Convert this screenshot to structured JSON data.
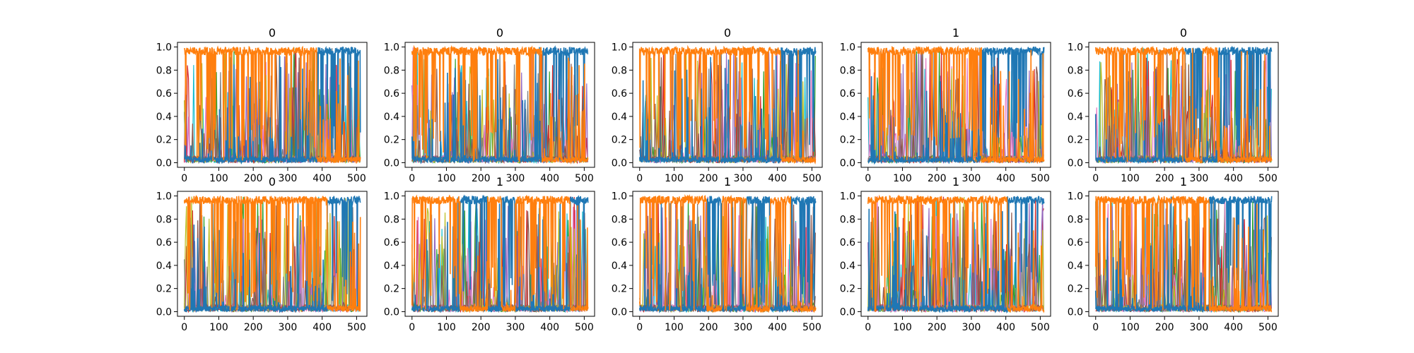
{
  "chart_data": [
    {
      "type": "line",
      "title": "0",
      "x_ticks": [
        "0",
        "100",
        "200",
        "300",
        "400",
        "500"
      ],
      "y_ticks": [
        "0.0",
        "0.2",
        "0.4",
        "0.6",
        "0.8",
        "1.0"
      ],
      "xlim": [
        -20,
        530
      ],
      "ylim": [
        -0.04,
        1.04
      ],
      "xlabel": "",
      "ylabel": "",
      "grid": false,
      "legend": "none",
      "regimes": [
        {
          "series": "orange",
          "from": 0,
          "to": 385
        },
        {
          "series": "blue",
          "from": 385,
          "to": 511
        }
      ]
    },
    {
      "type": "line",
      "title": "0",
      "x_ticks": [
        "0",
        "100",
        "200",
        "300",
        "400",
        "500"
      ],
      "y_ticks": [
        "0.0",
        "0.2",
        "0.4",
        "0.6",
        "0.8",
        "1.0"
      ],
      "xlim": [
        -20,
        530
      ],
      "ylim": [
        -0.04,
        1.04
      ],
      "xlabel": "",
      "ylabel": "",
      "grid": false,
      "legend": "none",
      "regimes": [
        {
          "series": "orange",
          "from": 0,
          "to": 378
        },
        {
          "series": "blue",
          "from": 378,
          "to": 511
        }
      ]
    },
    {
      "type": "line",
      "title": "0",
      "x_ticks": [
        "0",
        "100",
        "200",
        "300",
        "400",
        "500"
      ],
      "y_ticks": [
        "0.0",
        "0.2",
        "0.4",
        "0.6",
        "0.8",
        "1.0"
      ],
      "xlim": [
        -20,
        530
      ],
      "ylim": [
        -0.04,
        1.04
      ],
      "xlabel": "",
      "ylabel": "",
      "grid": false,
      "legend": "none",
      "regimes": [
        {
          "series": "orange",
          "from": 0,
          "to": 410
        },
        {
          "series": "blue",
          "from": 410,
          "to": 511
        }
      ]
    },
    {
      "type": "line",
      "title": "1",
      "x_ticks": [
        "0",
        "100",
        "200",
        "300",
        "400",
        "500"
      ],
      "y_ticks": [
        "0.0",
        "0.2",
        "0.4",
        "0.6",
        "0.8",
        "1.0"
      ],
      "xlim": [
        -20,
        530
      ],
      "ylim": [
        -0.04,
        1.04
      ],
      "xlabel": "",
      "ylabel": "",
      "grid": false,
      "legend": "none",
      "regimes": [
        {
          "series": "orange",
          "from": 0,
          "to": 330
        },
        {
          "series": "blue",
          "from": 330,
          "to": 511
        }
      ]
    },
    {
      "type": "line",
      "title": "0",
      "x_ticks": [
        "0",
        "100",
        "200",
        "300",
        "400",
        "500"
      ],
      "y_ticks": [
        "0.0",
        "0.2",
        "0.4",
        "0.6",
        "0.8",
        "1.0"
      ],
      "xlim": [
        -20,
        530
      ],
      "ylim": [
        -0.04,
        1.04
      ],
      "xlabel": "",
      "ylabel": "",
      "grid": false,
      "legend": "none",
      "regimes": [
        {
          "series": "orange",
          "from": 0,
          "to": 260
        },
        {
          "series": "blue",
          "from": 260,
          "to": 310
        },
        {
          "series": "orange",
          "from": 310,
          "to": 355
        },
        {
          "series": "blue",
          "from": 355,
          "to": 511
        }
      ]
    },
    {
      "type": "line",
      "title": "0",
      "x_ticks": [
        "0",
        "100",
        "200",
        "300",
        "400",
        "500"
      ],
      "y_ticks": [
        "0.0",
        "0.2",
        "0.4",
        "0.6",
        "0.8",
        "1.0"
      ],
      "xlim": [
        -20,
        530
      ],
      "ylim": [
        -0.04,
        1.04
      ],
      "xlabel": "",
      "ylabel": "",
      "grid": false,
      "legend": "none",
      "regimes": [
        {
          "series": "orange",
          "from": 0,
          "to": 415
        },
        {
          "series": "blue",
          "from": 415,
          "to": 511
        }
      ]
    },
    {
      "type": "line",
      "title": "1",
      "x_ticks": [
        "0",
        "100",
        "200",
        "300",
        "400",
        "500"
      ],
      "y_ticks": [
        "0.0",
        "0.2",
        "0.4",
        "0.6",
        "0.8",
        "1.0"
      ],
      "xlim": [
        -20,
        530
      ],
      "ylim": [
        -0.04,
        1.04
      ],
      "xlabel": "",
      "ylabel": "",
      "grid": false,
      "legend": "none",
      "regimes": [
        {
          "series": "orange",
          "from": 0,
          "to": 140
        },
        {
          "series": "blue",
          "from": 140,
          "to": 220
        },
        {
          "series": "orange",
          "from": 220,
          "to": 260
        },
        {
          "series": "blue",
          "from": 260,
          "to": 300
        },
        {
          "series": "orange",
          "from": 300,
          "to": 460
        },
        {
          "series": "blue",
          "from": 460,
          "to": 511
        }
      ]
    },
    {
      "type": "line",
      "title": "1",
      "x_ticks": [
        "0",
        "100",
        "200",
        "300",
        "400",
        "500"
      ],
      "y_ticks": [
        "0.0",
        "0.2",
        "0.4",
        "0.6",
        "0.8",
        "1.0"
      ],
      "xlim": [
        -20,
        530
      ],
      "ylim": [
        -0.04,
        1.04
      ],
      "xlabel": "",
      "ylabel": "",
      "grid": false,
      "legend": "none",
      "regimes": [
        {
          "series": "orange",
          "from": 0,
          "to": 195
        },
        {
          "series": "blue",
          "from": 195,
          "to": 240
        },
        {
          "series": "orange",
          "from": 240,
          "to": 310
        },
        {
          "series": "blue",
          "from": 310,
          "to": 380
        },
        {
          "series": "orange",
          "from": 380,
          "to": 440
        },
        {
          "series": "blue",
          "from": 440,
          "to": 511
        }
      ]
    },
    {
      "type": "line",
      "title": "1",
      "x_ticks": [
        "0",
        "100",
        "200",
        "300",
        "400",
        "500"
      ],
      "y_ticks": [
        "0.0",
        "0.2",
        "0.4",
        "0.6",
        "0.8",
        "1.0"
      ],
      "xlim": [
        -20,
        530
      ],
      "ylim": [
        -0.04,
        1.04
      ],
      "xlabel": "",
      "ylabel": "",
      "grid": false,
      "legend": "none",
      "regimes": [
        {
          "series": "orange",
          "from": 0,
          "to": 405
        },
        {
          "series": "blue",
          "from": 405,
          "to": 511
        }
      ]
    },
    {
      "type": "line",
      "title": "1",
      "x_ticks": [
        "0",
        "100",
        "200",
        "300",
        "400",
        "500"
      ],
      "y_ticks": [
        "0.0",
        "0.2",
        "0.4",
        "0.6",
        "0.8",
        "1.0"
      ],
      "xlim": [
        -20,
        530
      ],
      "ylim": [
        -0.04,
        1.04
      ],
      "xlabel": "",
      "ylabel": "",
      "grid": false,
      "legend": "none",
      "regimes": [
        {
          "series": "orange",
          "from": 0,
          "to": 330
        },
        {
          "series": "blue",
          "from": 330,
          "to": 511
        }
      ]
    }
  ],
  "colors": {
    "blue": "#1f77b4",
    "orange": "#ff7f0e",
    "cyan": "#17becf",
    "green": "#2ca02c",
    "red": "#d62728",
    "purple": "#9467bd",
    "pink": "#e377c2",
    "olive": "#bcbd22",
    "gray": "#7f7f7f",
    "brown": "#8c564b"
  }
}
